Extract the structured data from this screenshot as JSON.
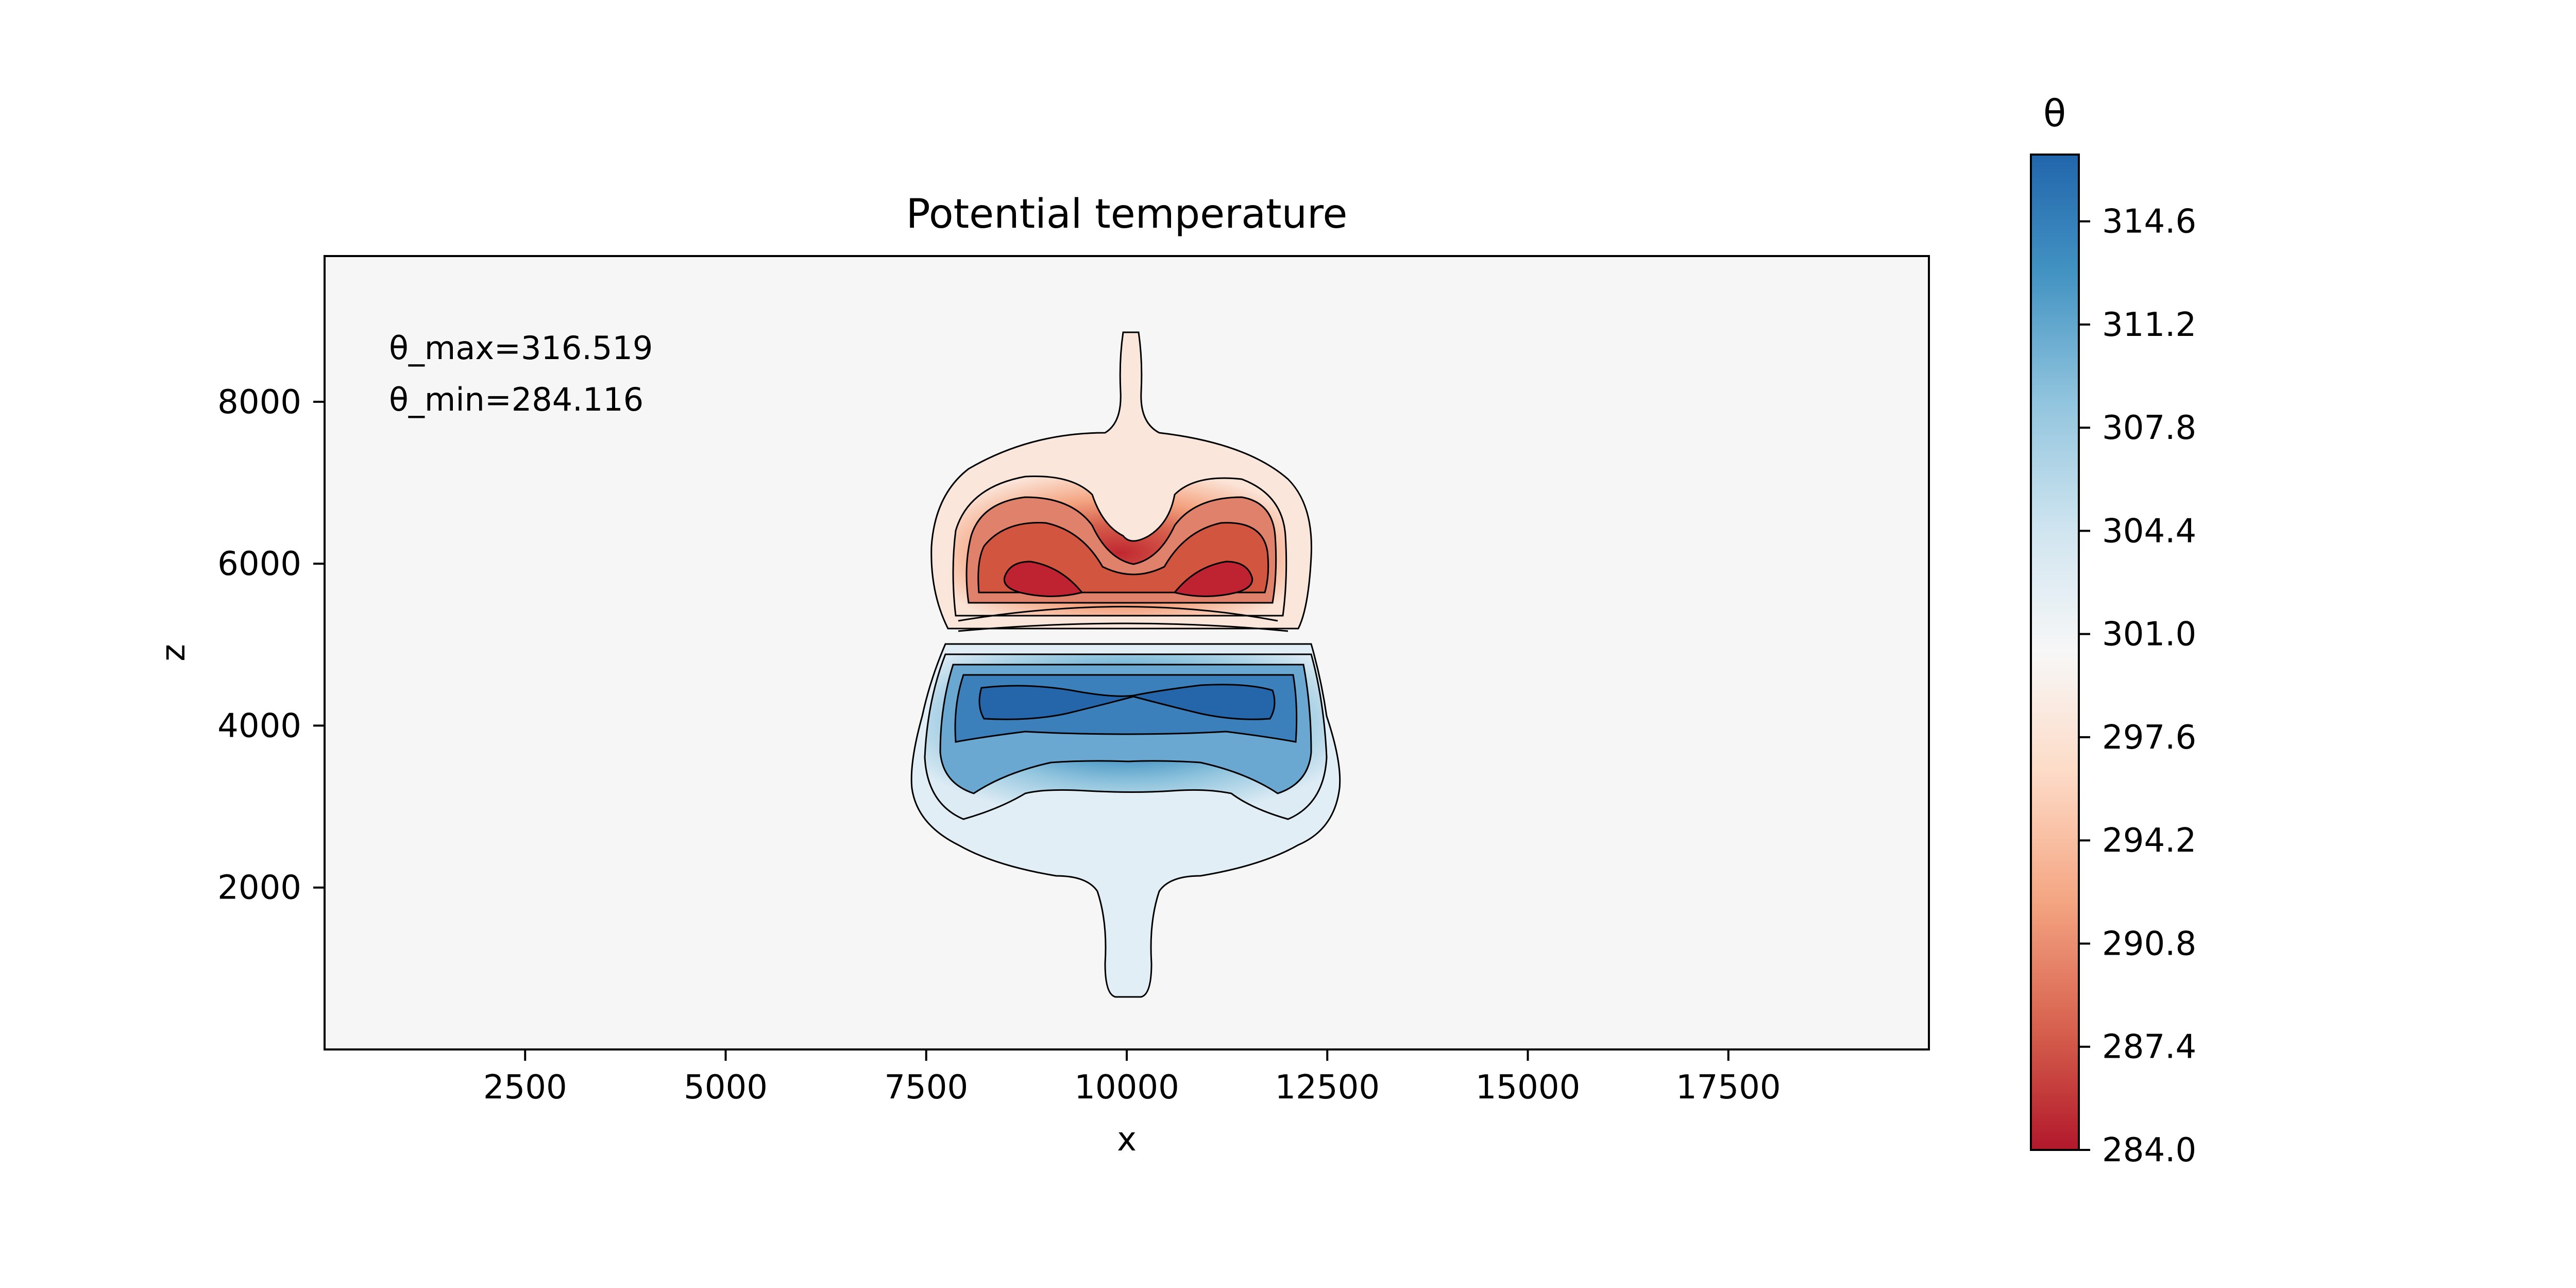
{
  "chart_data": {
    "type": "heatmap",
    "title": "Potential temperature",
    "xlabel": "x",
    "ylabel": "z",
    "xlim": [
      0,
      20000
    ],
    "ylim": [
      0,
      9800
    ],
    "xticks": [
      2500,
      5000,
      7500,
      10000,
      12500,
      15000,
      17500
    ],
    "yticks": [
      2000,
      4000,
      6000,
      8000
    ],
    "annotations": [
      "θ_max=316.519",
      "θ_min=284.116"
    ],
    "colorbar": {
      "label": "θ",
      "min": 284.0,
      "max": 316.8,
      "ticks": [
        284.0,
        287.4,
        290.8,
        294.2,
        297.6,
        301.0,
        304.4,
        307.8,
        311.2,
        314.6
      ],
      "colormap": "RdBu",
      "low_color": "#b2182b",
      "mid_color": "#f7f7f7",
      "high_color": "#2166ac"
    },
    "background_value": 300.0,
    "grid": false,
    "features": [
      {
        "name": "cold anomaly upper",
        "x_range": [
          7600,
          12400
        ],
        "z_range": [
          5400,
          7600
        ],
        "min_value": 284.116,
        "cores_x": [
          8600,
          11400
        ],
        "core_z": 5900
      },
      {
        "name": "cold stem upper",
        "x": 10000,
        "z_range": [
          7000,
          9000
        ]
      },
      {
        "name": "warm anomaly lower",
        "x_range": [
          7400,
          12600
        ],
        "z_range": [
          2200,
          5000
        ],
        "max_value": 316.519,
        "cores_x": [
          8800,
          11200
        ],
        "core_z": 4400
      },
      {
        "name": "warm stem lower",
        "x": 10000,
        "z_range": [
          700,
          2500
        ]
      }
    ]
  }
}
